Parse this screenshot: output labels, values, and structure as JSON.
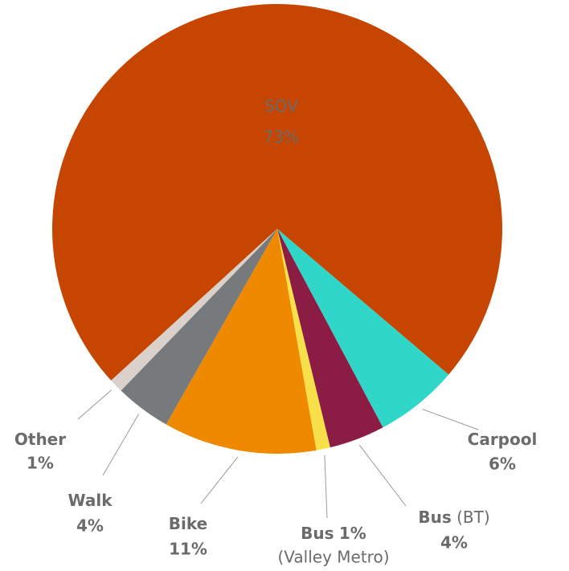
{
  "chart_data": {
    "type": "pie",
    "categories": [
      "SOV",
      "Carpool",
      "Bus",
      "Bus",
      "Bike",
      "Walk",
      "Other"
    ],
    "category_notes": [
      null,
      null,
      "(BT)",
      "(Valley Metro)",
      null,
      null,
      null
    ],
    "values": [
      73,
      6,
      4,
      1,
      11,
      4,
      1
    ],
    "value_labels": [
      "73%",
      "6%",
      "4%",
      "1%",
      "11%",
      "4%",
      "1%"
    ],
    "colors": [
      "#c64500",
      "#30d6c8",
      "#8b1d45",
      "#f7e04a",
      "#ee8900",
      "#767a7c",
      "#dbd1cb"
    ],
    "start_angle": 227.6
  }
}
